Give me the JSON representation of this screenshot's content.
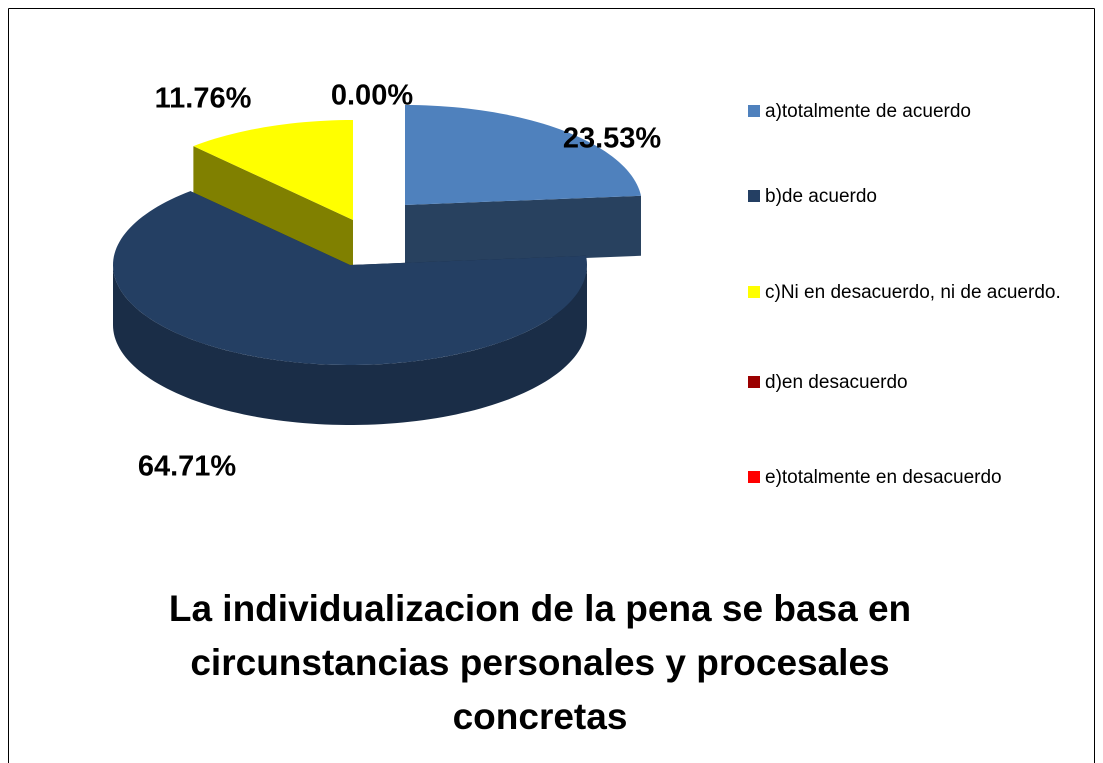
{
  "chart_data": {
    "type": "pie3d",
    "title": "La individualizacion de la pena se basa en circunstancias personales y procesales concretas",
    "categories": [
      "a)totalmente de acuerdo",
      "b)de acuerdo",
      "c)Ni en desacuerdo, ni de acuerdo.",
      "d)en desacuerdo",
      "e)totalmente en desacuerdo"
    ],
    "values": [
      23.53,
      64.71,
      11.76,
      0,
      0
    ],
    "value_labels": [
      "23.53%",
      "64.71%",
      "11.76%",
      "0.00%",
      null
    ],
    "colors": [
      "#4f81bd",
      "#243f63",
      "#ffff00",
      "#9b0000",
      "#ff0000"
    ],
    "legend": "right"
  }
}
